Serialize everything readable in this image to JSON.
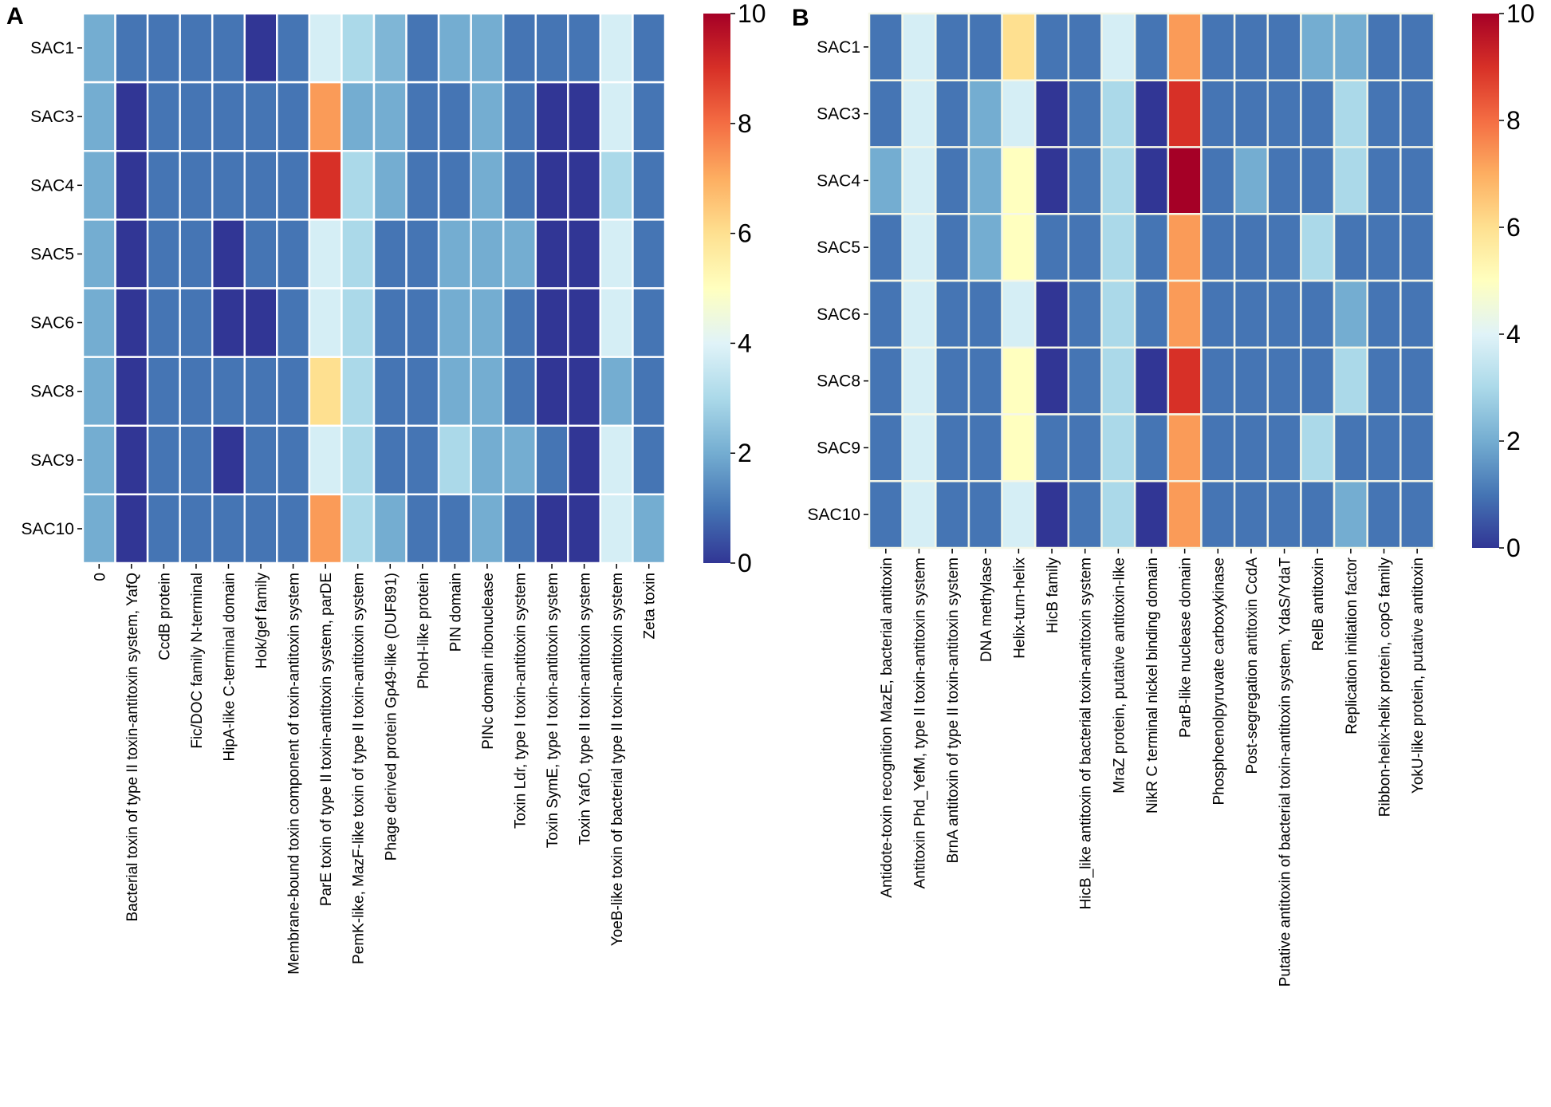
{
  "chart_data": [
    {
      "type": "heatmap",
      "panel": "A",
      "title": "",
      "xlabel": "",
      "ylabel": "",
      "colormap": "RdYlBu_r",
      "color_range": [
        0,
        10
      ],
      "colorbar_ticks": [
        "0",
        "2",
        "4",
        "6",
        "8",
        "10"
      ],
      "colorbar_placement": "right",
      "rows": [
        "SAC1",
        "SAC3",
        "SAC4",
        "SAC5",
        "SAC6",
        "SAC8",
        "SAC9",
        "SAC10"
      ],
      "columns": [
        "0",
        "Bacterial toxin of type II toxin-antitoxin system, YafQ",
        "CcdB protein",
        "Fic/DOC family N-terminal",
        "HipA-like C-terminal domain",
        "Hok/gef family",
        "Membrane-bound toxin component of toxin-antitoxin system",
        "ParE toxin of type II toxin-antitoxin system, parDE",
        "PemK-like, MazF-like toxin of type II toxin-antitoxin system",
        "Phage derived protein Gp49-like (DUF891)",
        "PhoH-like protein",
        "PIN domain",
        "PINc domain ribonuclease",
        "Toxin Ldr, type I toxin-antitoxin system",
        "Toxin SymE, type I toxin-antitoxin system",
        "Toxin YafO, type II toxin-antitoxin system",
        "YoeB-like toxin of bacterial type II toxin-antitoxin system",
        "Zeta toxin"
      ],
      "values": [
        [
          2,
          1,
          1,
          1,
          1,
          0,
          1,
          3.8,
          3,
          2.2,
          1,
          2,
          2,
          1,
          1,
          1,
          3.8,
          1
        ],
        [
          2,
          0,
          1,
          1,
          1,
          1,
          1,
          7.3,
          2,
          2,
          1,
          1,
          2,
          1,
          0,
          0,
          3.8,
          1
        ],
        [
          2,
          0,
          1,
          1,
          1,
          1,
          1,
          9,
          3,
          2,
          1,
          1,
          2,
          1,
          0,
          0,
          3,
          1
        ],
        [
          2,
          0,
          1,
          1,
          0,
          1,
          1,
          3.8,
          3,
          1,
          1,
          2,
          2,
          2,
          0,
          0,
          3.8,
          1
        ],
        [
          2,
          0,
          1,
          1,
          0,
          0,
          1,
          3.8,
          3,
          1,
          1,
          2,
          2,
          1,
          0,
          0,
          3.8,
          1
        ],
        [
          2,
          0,
          1,
          1,
          1,
          1,
          1,
          6,
          3,
          1,
          1,
          2,
          2,
          1,
          0,
          0,
          2,
          1
        ],
        [
          2,
          0,
          1,
          1,
          0,
          1,
          1,
          3.8,
          3,
          1,
          1,
          3,
          2,
          2,
          1,
          0,
          3.8,
          1
        ],
        [
          2,
          0,
          1,
          1,
          1,
          1,
          1,
          7.3,
          3,
          2,
          1,
          1,
          2,
          1,
          0,
          0,
          3.8,
          2
        ]
      ]
    },
    {
      "type": "heatmap",
      "panel": "B",
      "title": "",
      "xlabel": "",
      "ylabel": "",
      "colormap": "RdYlBu_r",
      "color_range": [
        0,
        10
      ],
      "colorbar_ticks": [
        "0",
        "2",
        "4",
        "6",
        "8",
        "10"
      ],
      "colorbar_placement": "right",
      "rows": [
        "SAC1",
        "SAC3",
        "SAC4",
        "SAC5",
        "SAC6",
        "SAC8",
        "SAC9",
        "SAC10"
      ],
      "columns": [
        "Antidote-toxin recognition MazE, bacterial antitoxin",
        "Antitoxin Phd_YefM, type II toxin-antitoxin system",
        "BrnA antitoxin of type II toxin-antitoxin system",
        "DNA methylase",
        "Helix-turn-helix",
        "HicB family",
        "HicB_like antitoxin of bacterial toxin-antitoxin system",
        "MraZ protein, putative antitoxin-like",
        "NikR C terminal nickel binding domain",
        "ParB-like nuclease domain",
        "Phosphoenolpyruvate carboxykinase",
        "Post-segregation antitoxin CcdA",
        "Putative antitoxin of bacterial toxin-antitoxin system, YdaS/YdaT",
        "RelB antitoxin",
        "Replication initiation factor",
        "Ribbon-helix-helix protein, copG family",
        "YokU-like protein, putative antitoxin"
      ],
      "values": [
        [
          1,
          3.8,
          1,
          1,
          6,
          1,
          1,
          3.8,
          1,
          7.3,
          1,
          1,
          1,
          2,
          2,
          1,
          1
        ],
        [
          1,
          3.8,
          1,
          2,
          3.8,
          0,
          1,
          3,
          0,
          9,
          1,
          1,
          1,
          1,
          3,
          1,
          1
        ],
        [
          2,
          3.8,
          1,
          2,
          5,
          0,
          1,
          3,
          0,
          10,
          1,
          2,
          1,
          1,
          3,
          1,
          1
        ],
        [
          1,
          3.8,
          1,
          2,
          5,
          1,
          1,
          3,
          1,
          7.3,
          1,
          1,
          1,
          3,
          1,
          1,
          1
        ],
        [
          1,
          3.8,
          1,
          1,
          3.8,
          0,
          1,
          3,
          1,
          7.3,
          1,
          1,
          1,
          1,
          2,
          1,
          1
        ],
        [
          1,
          3.8,
          1,
          1,
          5,
          0,
          1,
          3,
          0,
          9,
          1,
          1,
          1,
          1,
          3,
          1,
          1
        ],
        [
          1,
          3.8,
          1,
          1,
          5,
          1,
          1,
          3,
          1,
          7.3,
          1,
          1,
          1,
          3,
          1,
          1,
          1
        ],
        [
          1,
          3.8,
          1,
          1,
          3.8,
          0,
          1,
          3,
          0,
          7.3,
          1,
          1,
          1,
          1,
          2,
          1,
          1
        ]
      ]
    }
  ],
  "colormap_stops": [
    "#313695",
    "#4575b4",
    "#74add1",
    "#abd9e9",
    "#e0f3f8",
    "#ffffbf",
    "#fee090",
    "#fdae61",
    "#f46d43",
    "#d73027",
    "#a50026"
  ]
}
